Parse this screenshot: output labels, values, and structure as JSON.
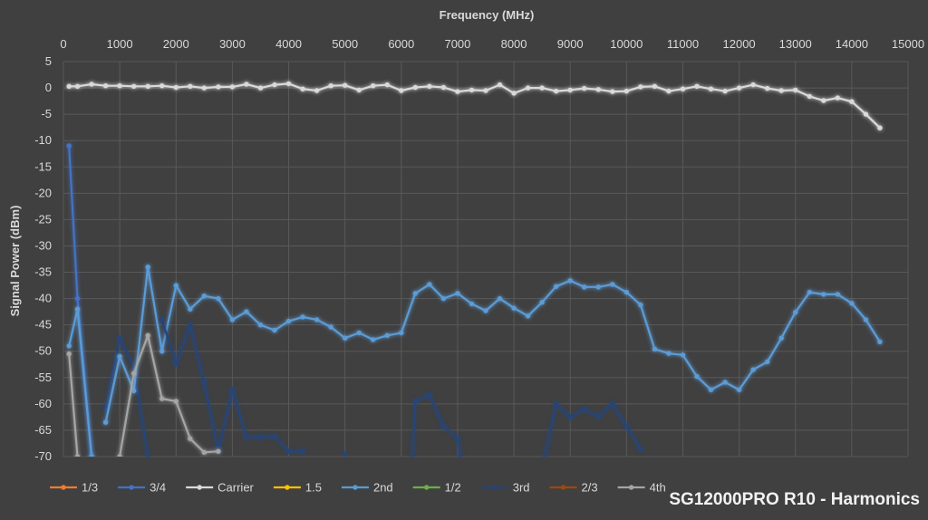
{
  "chart_data": {
    "type": "line",
    "title": "",
    "xlabel": "Frequency (MHz)",
    "ylabel": "Signal Power (dBm)",
    "xlim": [
      0,
      15000
    ],
    "ylim": [
      -70,
      5
    ],
    "x_ticks": [
      0,
      1000,
      2000,
      3000,
      4000,
      5000,
      6000,
      7000,
      8000,
      9000,
      10000,
      11000,
      12000,
      13000,
      14000,
      15000
    ],
    "y_ticks": [
      5,
      0,
      -5,
      -10,
      -15,
      -20,
      -25,
      -30,
      -35,
      -40,
      -45,
      -50,
      -55,
      -60,
      -65,
      -70
    ],
    "grid": true,
    "x_axis_position": "top",
    "legend_position": "bottom-left",
    "annotation": "SG12000PRO R10 - Harmonics",
    "series": [
      {
        "name": "1/3",
        "color": "#ed7d31",
        "points": []
      },
      {
        "name": "3/4",
        "color": "#4472c4",
        "points": [
          [
            100,
            -11
          ],
          [
            250,
            -40
          ],
          [
            500,
            -70
          ]
        ]
      },
      {
        "name": "Carrier",
        "color": "#d9d9d9",
        "points": [
          [
            100,
            0.3
          ],
          [
            250,
            0.3
          ],
          [
            500,
            0.7
          ],
          [
            750,
            0.4
          ],
          [
            1000,
            0.4
          ],
          [
            1250,
            0.3
          ],
          [
            1500,
            0.3
          ],
          [
            1750,
            0.4
          ],
          [
            2000,
            0.1
          ],
          [
            2250,
            0.3
          ],
          [
            2500,
            0
          ],
          [
            2750,
            0.2
          ],
          [
            3000,
            0.2
          ],
          [
            3250,
            0.7
          ],
          [
            3500,
            0
          ],
          [
            3750,
            0.6
          ],
          [
            4000,
            0.8
          ],
          [
            4250,
            -0.2
          ],
          [
            4500,
            -0.5
          ],
          [
            4750,
            0.4
          ],
          [
            5000,
            0.5
          ],
          [
            5250,
            -0.4
          ],
          [
            5500,
            0.4
          ],
          [
            5750,
            0.6
          ],
          [
            6000,
            -0.5
          ],
          [
            6250,
            0.1
          ],
          [
            6500,
            0.3
          ],
          [
            6750,
            0.1
          ],
          [
            7000,
            -0.7
          ],
          [
            7250,
            -0.4
          ],
          [
            7500,
            -0.5
          ],
          [
            7750,
            0.6
          ],
          [
            8000,
            -1
          ],
          [
            8250,
            0
          ],
          [
            8500,
            0
          ],
          [
            8750,
            -0.6
          ],
          [
            9000,
            -0.4
          ],
          [
            9250,
            -0.1
          ],
          [
            9500,
            -0.3
          ],
          [
            9750,
            -0.7
          ],
          [
            10000,
            -0.6
          ],
          [
            10250,
            0.2
          ],
          [
            10500,
            0.3
          ],
          [
            10750,
            -0.6
          ],
          [
            11000,
            -0.2
          ],
          [
            11250,
            0.3
          ],
          [
            11500,
            -0.2
          ],
          [
            11750,
            -0.6
          ],
          [
            12000,
            0
          ],
          [
            12250,
            0.6
          ],
          [
            12500,
            -0.1
          ],
          [
            12750,
            -0.5
          ],
          [
            13000,
            -0.4
          ],
          [
            13250,
            -1.6
          ],
          [
            13500,
            -2.4
          ],
          [
            13750,
            -1.9
          ],
          [
            14000,
            -2.6
          ],
          [
            14250,
            -5
          ],
          [
            14500,
            -7.6
          ]
        ]
      },
      {
        "name": "1.5",
        "color": "#ffc000",
        "points": []
      },
      {
        "name": "2nd",
        "color": "#5b9bd5",
        "points": [
          [
            100,
            -49
          ],
          [
            250,
            -42
          ],
          [
            500,
            -70
          ]
        ]
      },
      {
        "name": "1/2",
        "color": "#70ad47",
        "points": []
      },
      {
        "name": "3rd",
        "color": "#264478",
        "points": [
          [
            750,
            -61
          ],
          [
            1000,
            -47.5
          ],
          [
            1250,
            -53
          ],
          [
            1500,
            -70
          ]
        ]
      },
      {
        "name": "2/3",
        "color": "#9e480e",
        "points": []
      },
      {
        "name": "4th",
        "color": "#a5a5a5",
        "points": [
          [
            100,
            -50.5
          ],
          [
            250,
            -70
          ]
        ]
      },
      {
        "name": "2nd",
        "color": "#5b9bd5",
        "points": [
          [
            750,
            -63.5
          ],
          [
            1000,
            -51
          ],
          [
            1250,
            -57.5
          ],
          [
            1500,
            -34
          ],
          [
            1750,
            -50
          ],
          [
            2000,
            -37.5
          ],
          [
            2250,
            -42
          ],
          [
            2500,
            -39.5
          ],
          [
            2750,
            -40
          ],
          [
            3000,
            -44
          ],
          [
            3250,
            -42.5
          ],
          [
            3500,
            -45
          ],
          [
            3750,
            -46
          ],
          [
            4000,
            -44.3
          ],
          [
            4250,
            -43.5
          ],
          [
            4500,
            -44
          ],
          [
            4750,
            -45.4
          ],
          [
            5000,
            -47.5
          ],
          [
            5250,
            -46.5
          ],
          [
            5500,
            -47.8
          ],
          [
            5750,
            -47
          ],
          [
            6000,
            -46.5
          ],
          [
            6250,
            -39
          ],
          [
            6500,
            -37.3
          ],
          [
            6750,
            -40
          ],
          [
            7000,
            -39
          ],
          [
            7250,
            -41
          ],
          [
            7500,
            -42.3
          ],
          [
            7750,
            -40
          ],
          [
            8000,
            -41.8
          ],
          [
            8250,
            -43.3
          ],
          [
            8500,
            -40.7
          ],
          [
            8750,
            -37.7
          ],
          [
            9000,
            -36.6
          ],
          [
            9250,
            -37.8
          ],
          [
            9500,
            -37.8
          ],
          [
            9750,
            -37.3
          ],
          [
            10000,
            -38.8
          ],
          [
            10250,
            -41.2
          ],
          [
            10500,
            -49.6
          ],
          [
            10750,
            -50.4
          ],
          [
            11000,
            -50.7
          ],
          [
            11250,
            -54.8
          ],
          [
            11500,
            -57.3
          ],
          [
            11750,
            -55.9
          ],
          [
            12000,
            -57.3
          ],
          [
            12250,
            -53.5
          ],
          [
            12500,
            -52
          ],
          [
            12750,
            -47.5
          ],
          [
            13000,
            -42.6
          ],
          [
            13250,
            -38.8
          ],
          [
            13500,
            -39.2
          ],
          [
            13750,
            -39.2
          ],
          [
            14000,
            -40.9
          ],
          [
            14250,
            -44
          ],
          [
            14500,
            -48.2
          ]
        ]
      },
      {
        "name": "3rd",
        "color": "#264478",
        "points": [
          [
            1750,
            -44
          ],
          [
            2000,
            -52.4
          ],
          [
            2250,
            -45
          ],
          [
            2500,
            -56
          ],
          [
            2750,
            -69
          ],
          [
            3000,
            -57.3
          ],
          [
            3250,
            -66.3
          ],
          [
            3500,
            -66.3
          ],
          [
            3750,
            -66.2
          ],
          [
            4000,
            -69
          ],
          [
            4250,
            -69
          ]
        ]
      },
      {
        "name": "3rd",
        "color": "#264478",
        "points": [
          [
            5000,
            -69.5
          ]
        ]
      },
      {
        "name": "3rd",
        "color": "#264478",
        "points": [
          [
            6200,
            -70
          ],
          [
            6250,
            -59.5
          ],
          [
            6500,
            -58.3
          ],
          [
            6750,
            -64.3
          ],
          [
            7000,
            -66.5
          ],
          [
            7050,
            -70
          ]
        ]
      },
      {
        "name": "3rd",
        "color": "#264478",
        "points": [
          [
            8550,
            -70
          ],
          [
            8750,
            -60
          ],
          [
            9000,
            -62.5
          ],
          [
            9250,
            -61
          ],
          [
            9500,
            -62.4
          ],
          [
            9750,
            -60
          ],
          [
            10000,
            -64.2
          ],
          [
            10250,
            -68.6
          ]
        ]
      },
      {
        "name": "4th",
        "color": "#a5a5a5",
        "points": [
          [
            1000,
            -70
          ],
          [
            1250,
            -54.2
          ],
          [
            1500,
            -47
          ],
          [
            1750,
            -59
          ],
          [
            2000,
            -59.5
          ],
          [
            2250,
            -66.6
          ],
          [
            2500,
            -69.2
          ],
          [
            2750,
            -69
          ]
        ]
      }
    ]
  }
}
